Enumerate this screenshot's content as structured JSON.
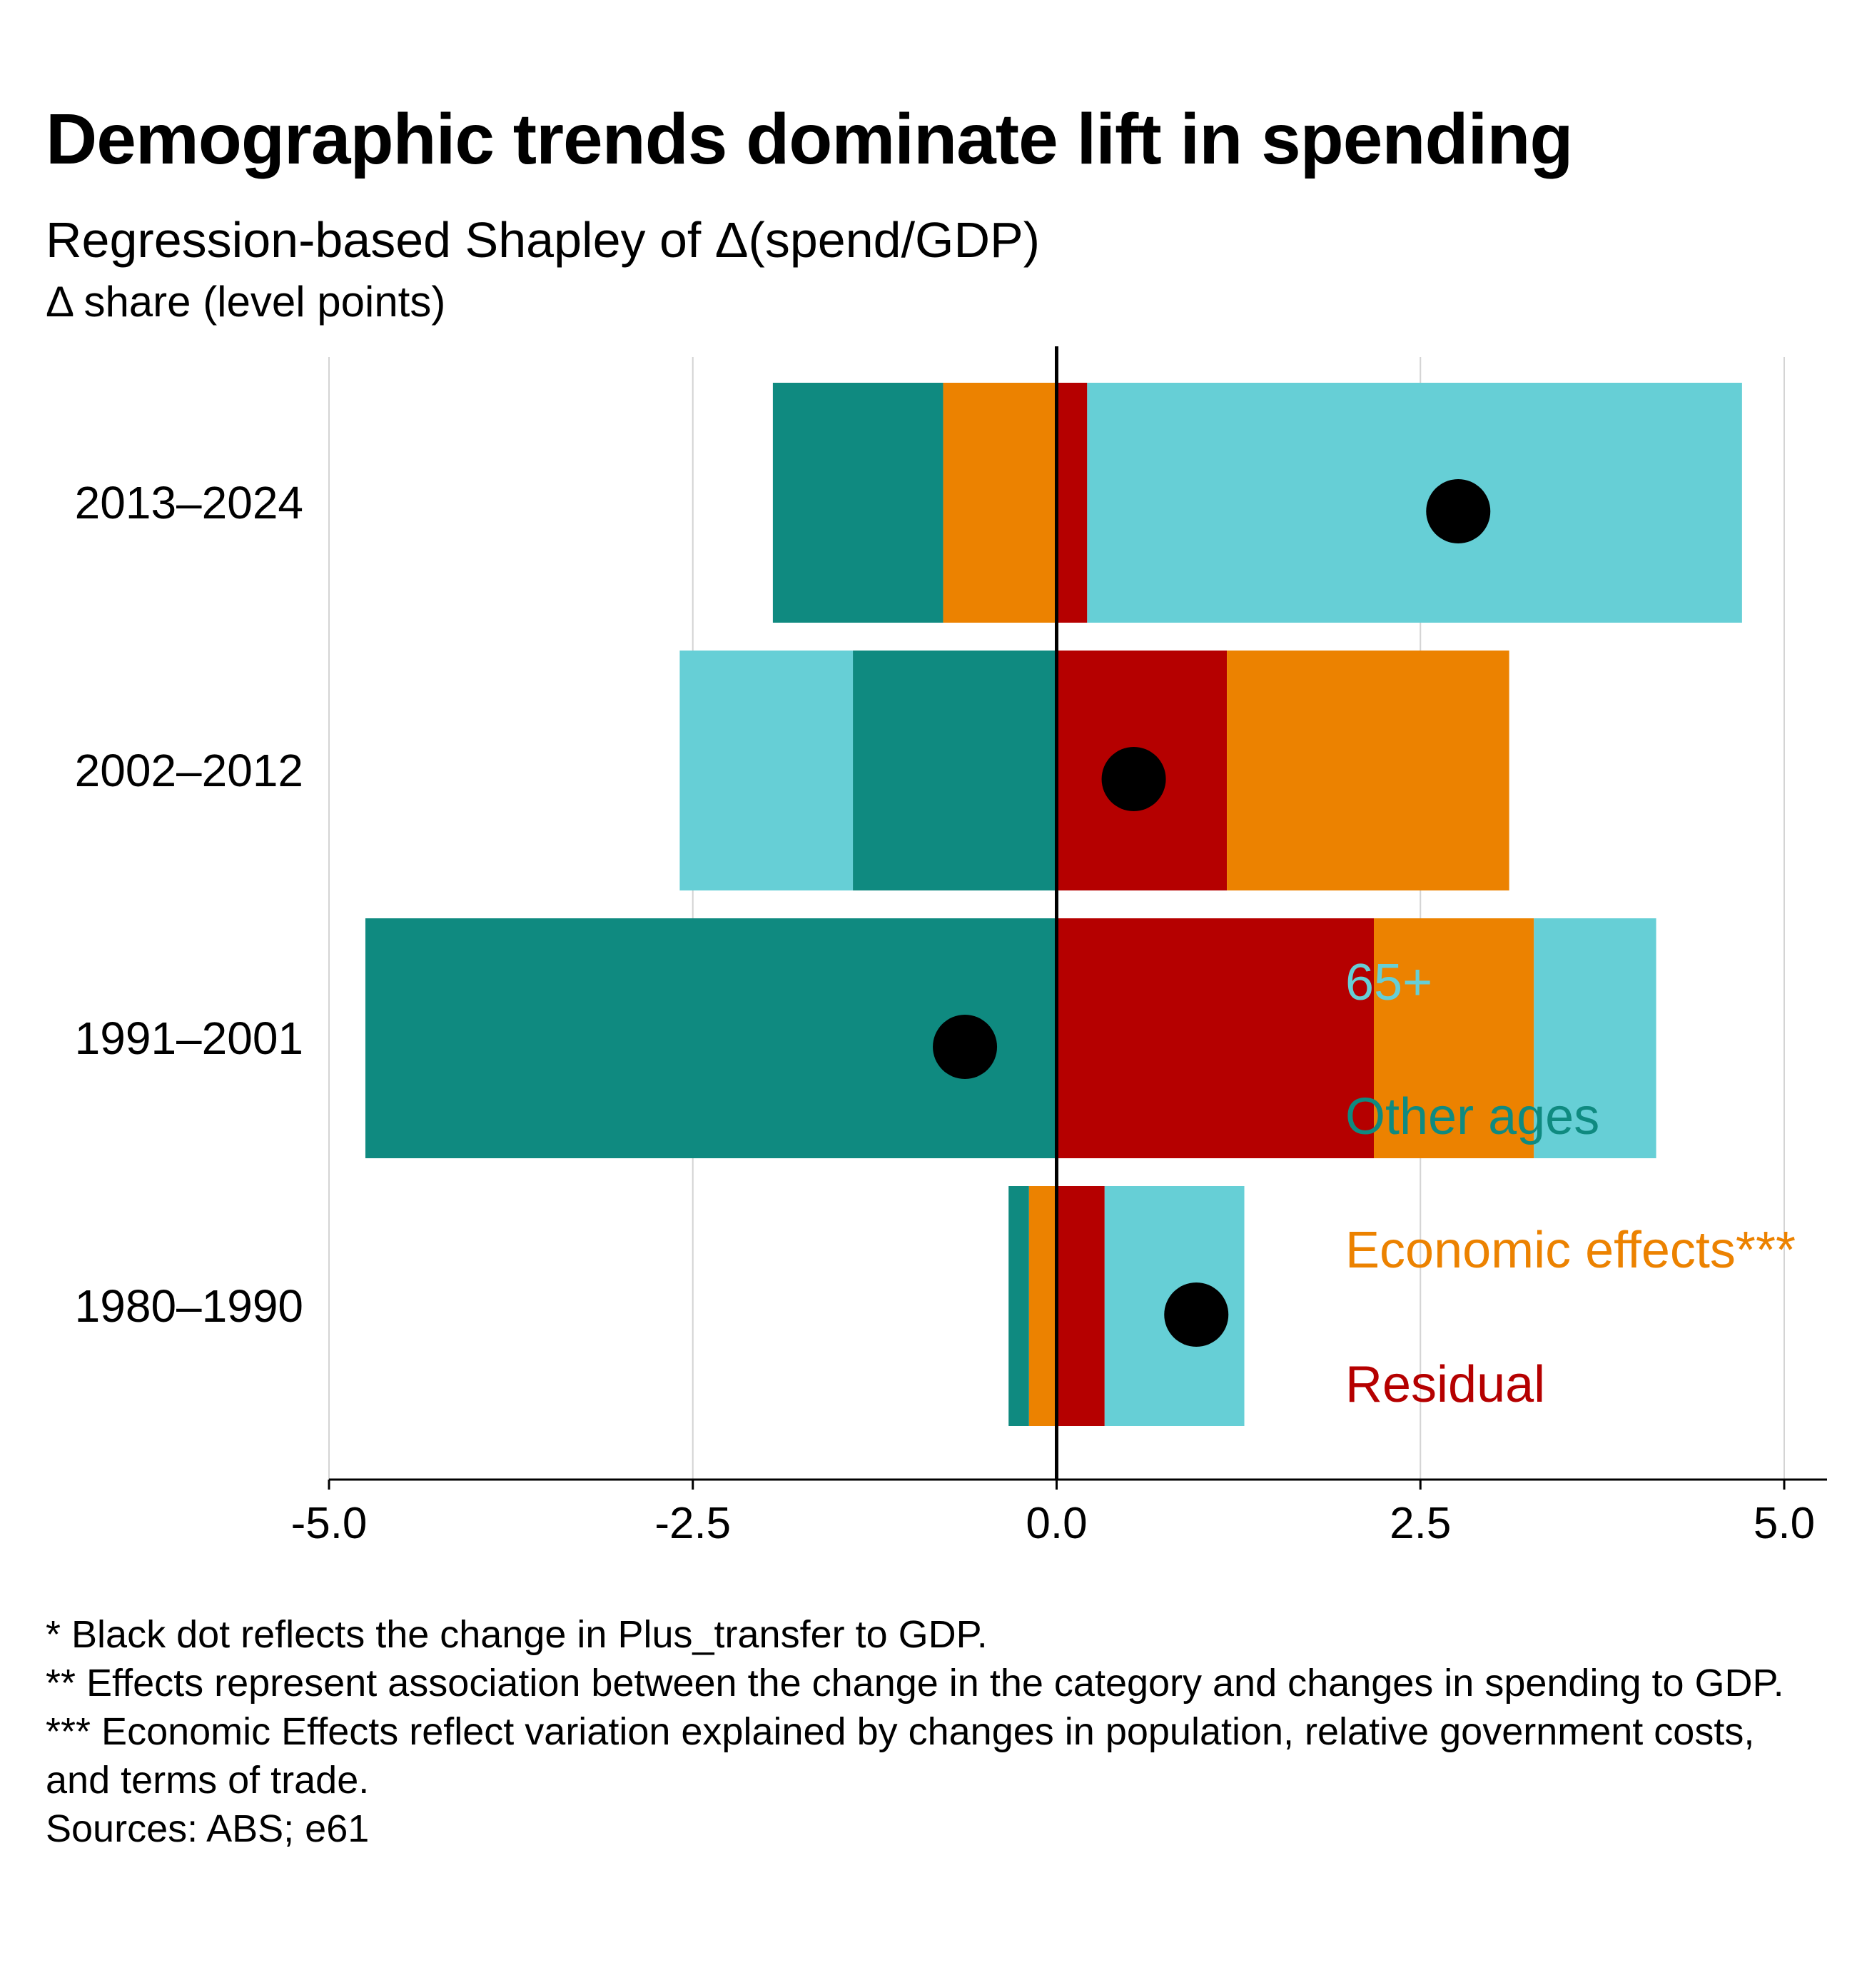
{
  "chart_data": {
    "type": "bar",
    "orientation": "horizontal",
    "stacked": "diverging",
    "title": "Demographic trends dominate lift in spending",
    "subtitle": "Regression-based Shapley of Δ(spend/GDP)",
    "xlabel": "Δ share (level points)",
    "xlim": [
      -5.0,
      5.0
    ],
    "xticks": [
      "-5.0",
      "-2.5",
      "0.0",
      "2.5",
      "5.0"
    ],
    "grid": "vertical",
    "categories": [
      "2013–2024",
      "2002–2012",
      "1991–2001",
      "1980–1990"
    ],
    "series": [
      {
        "name": "65+",
        "color": "#66cfd6",
        "values": [
          4.5,
          -1.19,
          0.84,
          0.96
        ]
      },
      {
        "name": "Other ages",
        "color": "#0f8a80",
        "values": [
          -1.17,
          -1.4,
          -4.75,
          -0.14
        ]
      },
      {
        "name": "Economic effects***",
        "color": "#ec8200",
        "values": [
          -0.78,
          1.94,
          1.1,
          -0.19
        ]
      },
      {
        "name": "Residual",
        "color": "#b50000",
        "values": [
          0.21,
          1.17,
          2.18,
          0.33
        ]
      }
    ],
    "markers": {
      "color": "#000000",
      "values": [
        2.76,
        0.53,
        -0.63,
        0.96
      ]
    },
    "legend_position": "lower-right"
  },
  "notes": [
    "* Black dot reflects the change in Plus_transfer to GDP.",
    "** Effects represent association between the change in the category and changes in spending to GDP.",
    "*** Economic Effects reflect variation explained by changes in population, relative government costs, and terms of trade.",
    "Sources: ABS; e61"
  ]
}
